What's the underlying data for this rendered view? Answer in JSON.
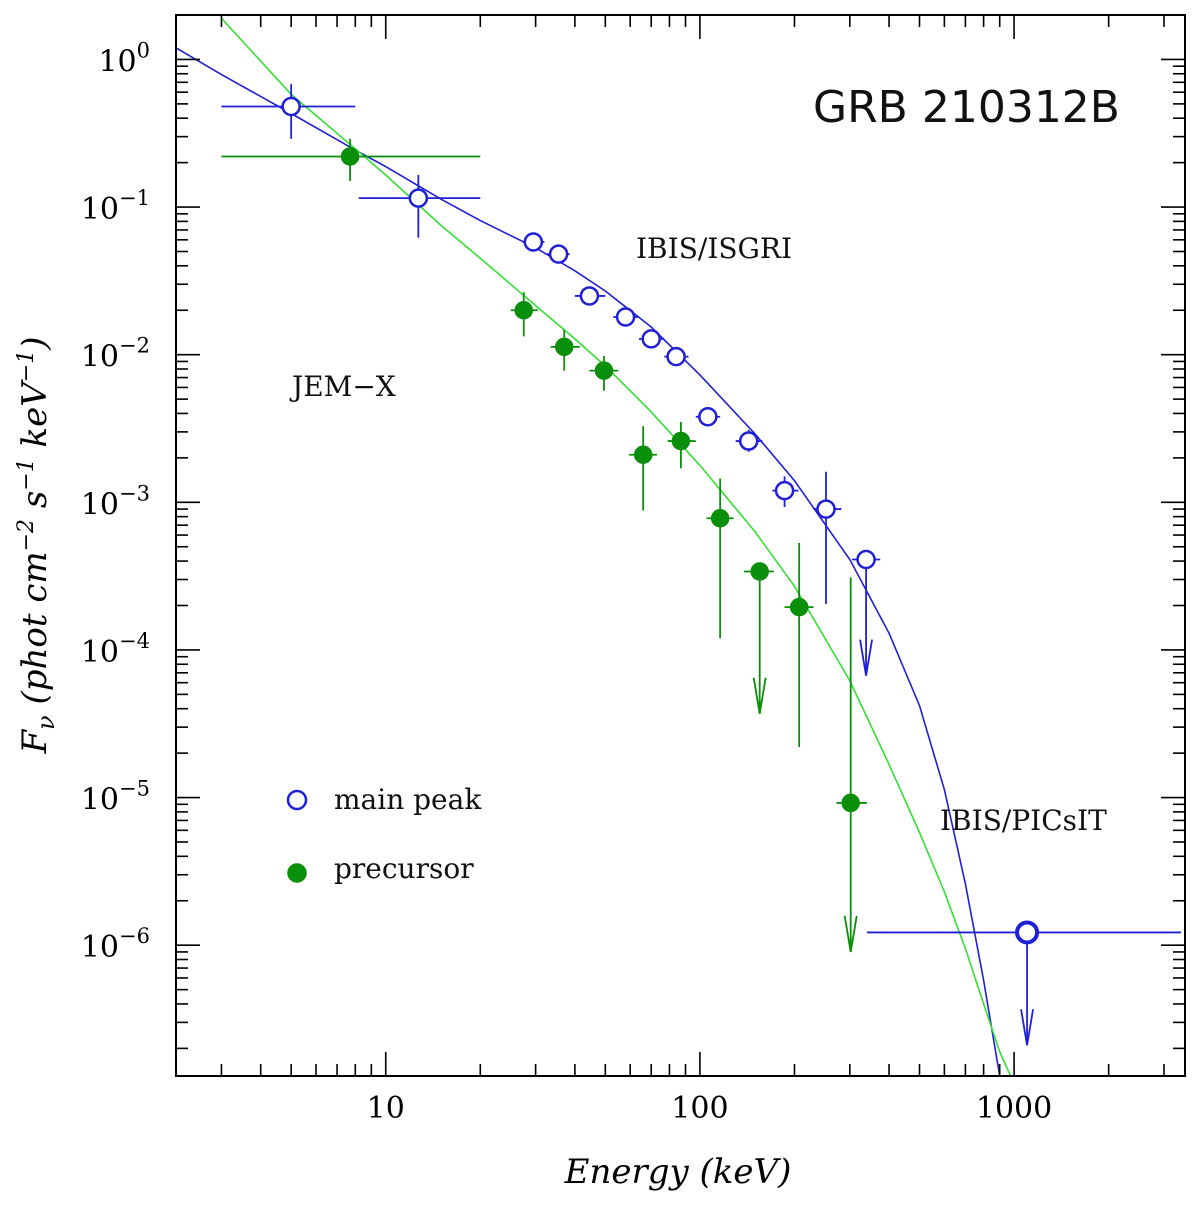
{
  "chart_data": {
    "type": "scatter",
    "title": "GRB 210312B",
    "xlabel": "Energy (keV)",
    "ylabel": "F_ν (phot cm^-2 s^-1 keV^-1)",
    "ylabel_parts": {
      "f": "F",
      "nu": "ν",
      "open": " (phot cm",
      "e1": "−2",
      "s": " s",
      "e2": "−1",
      "kev": " keV",
      "e3": "−1",
      "close": ")"
    },
    "x_scale": "log",
    "y_scale": "log",
    "xlim": [
      2.15,
      3500
    ],
    "ylim": [
      1.3e-07,
      2.0
    ],
    "x_ticks": [
      {
        "value": 10,
        "label": "10"
      },
      {
        "value": 100,
        "label": "100"
      },
      {
        "value": 1000,
        "label": "1000"
      }
    ],
    "y_ticks": [
      {
        "value": 1,
        "base": "10",
        "exp": "0"
      },
      {
        "value": 0.1,
        "base": "10",
        "exp": "−1"
      },
      {
        "value": 0.01,
        "base": "10",
        "exp": "−2"
      },
      {
        "value": 0.001,
        "base": "10",
        "exp": "−3"
      },
      {
        "value": 0.0001,
        "base": "10",
        "exp": "−4"
      },
      {
        "value": 1e-05,
        "base": "10",
        "exp": "−5"
      },
      {
        "value": 1e-06,
        "base": "10",
        "exp": "−6"
      }
    ],
    "annotations": {
      "jemx": "JEM−X",
      "isgri": "IBIS/ISGRI",
      "picsit": "IBIS/PICsIT"
    },
    "colors": {
      "main": "#1f1fd6",
      "precursor": "#0a8f0a",
      "fit_main": "#1f1fd6",
      "fit_precursor": "#33e033"
    },
    "legend": {
      "main_label": "main peak",
      "precursor_label": "precursor"
    },
    "series": [
      {
        "name": "main peak",
        "marker": "open-circle",
        "points": [
          {
            "x": 5,
            "xlo": 3,
            "xhi": 8,
            "y": 0.48,
            "ylo": 0.29,
            "yhi": 0.68
          },
          {
            "x": 12.7,
            "xlo": 8.2,
            "xhi": 20,
            "y": 0.115,
            "ylo": 0.062,
            "yhi": 0.165
          },
          {
            "x": 29.5,
            "xlo": 27.3,
            "xhi": 32,
            "y": 0.058,
            "ylo": 0.053,
            "yhi": 0.063
          },
          {
            "x": 35.5,
            "xlo": 32.5,
            "xhi": 38.5,
            "y": 0.048,
            "ylo": 0.044,
            "yhi": 0.052
          },
          {
            "x": 44.5,
            "xlo": 40,
            "xhi": 50,
            "y": 0.025,
            "ylo": 0.023,
            "yhi": 0.027
          },
          {
            "x": 58,
            "xlo": 53,
            "xhi": 64,
            "y": 0.018,
            "ylo": 0.0165,
            "yhi": 0.0195
          },
          {
            "x": 70,
            "xlo": 64,
            "xhi": 77,
            "y": 0.0128,
            "ylo": 0.0117,
            "yhi": 0.014
          },
          {
            "x": 84,
            "xlo": 77,
            "xhi": 92,
            "y": 0.0097,
            "ylo": 0.0088,
            "yhi": 0.0107
          },
          {
            "x": 106,
            "xlo": 97,
            "xhi": 116,
            "y": 0.0038,
            "ylo": 0.0033,
            "yhi": 0.0044
          },
          {
            "x": 143,
            "xlo": 130,
            "xhi": 158,
            "y": 0.0026,
            "ylo": 0.0022,
            "yhi": 0.0031
          },
          {
            "x": 186,
            "xlo": 170,
            "xhi": 206,
            "y": 0.0012,
            "ylo": 0.00093,
            "yhi": 0.0015
          },
          {
            "x": 252,
            "xlo": 230,
            "xhi": 282,
            "y": 0.0009,
            "ylo": 0.000205,
            "yhi": 0.00161
          }
        ],
        "upper_limits": [
          {
            "x": 338,
            "xlo": 305,
            "xhi": 375,
            "y": 0.00041,
            "arrow_to": 6.7e-05
          },
          {
            "x": 1100,
            "xlo": 340,
            "xhi": 3400,
            "y": 1.22e-06,
            "arrow_to": 2.1e-07
          }
        ]
      },
      {
        "name": "precursor",
        "marker": "filled-circle",
        "points": [
          {
            "x": 7.7,
            "xlo": 3,
            "xhi": 20,
            "y": 0.22,
            "ylo": 0.15,
            "yhi": 0.29
          },
          {
            "x": 27.5,
            "xlo": 25,
            "xhi": 30.5,
            "y": 0.02,
            "ylo": 0.0133,
            "yhi": 0.0265
          },
          {
            "x": 37,
            "xlo": 33.5,
            "xhi": 41.5,
            "y": 0.0113,
            "ylo": 0.0078,
            "yhi": 0.0148
          },
          {
            "x": 49.5,
            "xlo": 44.5,
            "xhi": 55,
            "y": 0.0078,
            "ylo": 0.0057,
            "yhi": 0.0098
          },
          {
            "x": 66,
            "xlo": 59.5,
            "xhi": 73,
            "y": 0.0021,
            "ylo": 0.00088,
            "yhi": 0.00328
          },
          {
            "x": 87,
            "xlo": 79,
            "xhi": 97,
            "y": 0.0026,
            "ylo": 0.0017,
            "yhi": 0.0035
          },
          {
            "x": 116,
            "xlo": 105,
            "xhi": 128,
            "y": 0.00078,
            "ylo": 0.00012,
            "yhi": 0.00145
          },
          {
            "x": 207,
            "xlo": 186,
            "xhi": 230,
            "y": 0.000195,
            "ylo": 2.2e-05,
            "yhi": 0.00053
          }
        ],
        "upper_limits": [
          {
            "x": 155,
            "xlo": 138,
            "xhi": 172,
            "y": 0.00034,
            "arrow_to": 3.7e-05
          },
          {
            "x": 302,
            "xlo": 272,
            "xhi": 340,
            "y": 9.2e-06,
            "arrow_to": 9e-07,
            "bar_top": 0.00031
          }
        ]
      }
    ],
    "fit_curves": [
      {
        "name": "main peak fit",
        "points": [
          [
            2.15,
            1.2
          ],
          [
            3,
            0.79
          ],
          [
            5,
            0.43
          ],
          [
            8,
            0.243
          ],
          [
            10,
            0.188
          ],
          [
            15,
            0.113
          ],
          [
            20,
            0.081
          ],
          [
            30,
            0.053
          ],
          [
            40,
            0.037
          ],
          [
            50,
            0.027
          ],
          [
            70,
            0.0154
          ],
          [
            100,
            0.0073
          ],
          [
            150,
            0.0029
          ],
          [
            200,
            0.0014
          ],
          [
            300,
            0.00041
          ],
          [
            400,
            0.00013
          ],
          [
            500,
            4.2e-05
          ],
          [
            600,
            1.13e-05
          ],
          [
            700,
            2.6e-06
          ],
          [
            800,
            5.8e-07
          ],
          [
            900,
            1.3e-07
          ]
        ]
      },
      {
        "name": "precursor fit",
        "points": [
          [
            3,
            1.9
          ],
          [
            5,
            0.58
          ],
          [
            8,
            0.248
          ],
          [
            10,
            0.165
          ],
          [
            15,
            0.075
          ],
          [
            20,
            0.045
          ],
          [
            30,
            0.0215
          ],
          [
            40,
            0.0128
          ],
          [
            50,
            0.0084
          ],
          [
            70,
            0.0041
          ],
          [
            100,
            0.00178
          ],
          [
            150,
            0.00063
          ],
          [
            200,
            0.00027
          ],
          [
            300,
            6.2e-05
          ],
          [
            400,
            1.68e-05
          ],
          [
            500,
            5.8e-06
          ],
          [
            600,
            2.3e-06
          ],
          [
            700,
            9.5e-07
          ],
          [
            800,
            4e-07
          ],
          [
            900,
            1.9e-07
          ],
          [
            1000,
            1.15e-07
          ]
        ]
      }
    ]
  }
}
